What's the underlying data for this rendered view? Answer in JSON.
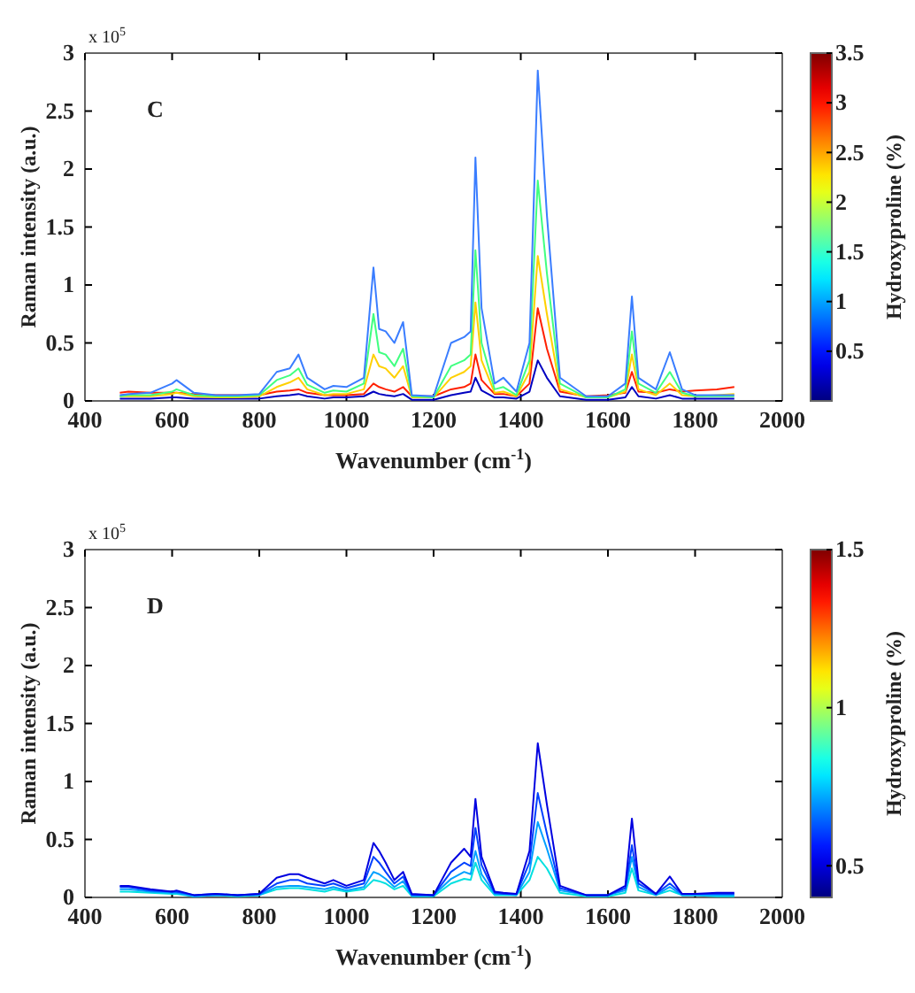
{
  "chart_data": [
    {
      "type": "line",
      "annotations": [
        "C",
        "x 10$^{5}$"
      ],
      "xlabel": "Wavenumber (cm$^{-1}$)",
      "ylabel": "Raman intensity (a.u.)",
      "clabel": "Hydroxyproline (%)",
      "clim": [
        0,
        3.5
      ],
      "cticks": [
        0.5,
        1,
        1.5,
        2,
        2.5,
        3,
        3.5
      ],
      "xlim": [
        400,
        2000
      ],
      "xticks": [
        400,
        600,
        800,
        1000,
        1200,
        1400,
        1600,
        1800,
        2000
      ],
      "ylim": [
        0,
        3
      ],
      "yticks": [
        0,
        0.5,
        1,
        1.5,
        2,
        2.5,
        3
      ],
      "x": [
        480,
        500,
        550,
        600,
        610,
        650,
        700,
        750,
        800,
        840,
        870,
        890,
        910,
        950,
        970,
        1000,
        1040,
        1062,
        1075,
        1090,
        1110,
        1130,
        1150,
        1200,
        1240,
        1270,
        1285,
        1296,
        1310,
        1340,
        1360,
        1390,
        1420,
        1439,
        1460,
        1490,
        1550,
        1600,
        1640,
        1655,
        1670,
        1710,
        1742,
        1770,
        1800,
        1850,
        1890
      ],
      "series": [
        {
          "color": "#0000c0",
          "values": [
            0.02,
            0.02,
            0.02,
            0.03,
            0.03,
            0.02,
            0.02,
            0.02,
            0.02,
            0.04,
            0.05,
            0.06,
            0.04,
            0.02,
            0.03,
            0.03,
            0.04,
            0.08,
            0.06,
            0.05,
            0.04,
            0.06,
            0.01,
            0.01,
            0.05,
            0.07,
            0.08,
            0.2,
            0.09,
            0.03,
            0.03,
            0.02,
            0.08,
            0.35,
            0.2,
            0.04,
            0.01,
            0.01,
            0.03,
            0.12,
            0.04,
            0.02,
            0.05,
            0.02,
            0.02,
            0.02,
            0.02
          ]
        },
        {
          "color": "#ff2000",
          "values": [
            0.07,
            0.08,
            0.07,
            0.07,
            0.07,
            0.06,
            0.05,
            0.05,
            0.05,
            0.08,
            0.09,
            0.1,
            0.07,
            0.05,
            0.05,
            0.05,
            0.06,
            0.15,
            0.12,
            0.1,
            0.08,
            0.12,
            0.04,
            0.04,
            0.1,
            0.12,
            0.15,
            0.4,
            0.18,
            0.06,
            0.06,
            0.04,
            0.15,
            0.8,
            0.45,
            0.08,
            0.04,
            0.05,
            0.07,
            0.25,
            0.08,
            0.07,
            0.1,
            0.08,
            0.09,
            0.1,
            0.12
          ]
        },
        {
          "color": "#ffd000",
          "values": [
            0.04,
            0.04,
            0.04,
            0.06,
            0.07,
            0.04,
            0.03,
            0.03,
            0.04,
            0.12,
            0.16,
            0.2,
            0.1,
            0.05,
            0.06,
            0.06,
            0.1,
            0.4,
            0.3,
            0.28,
            0.2,
            0.3,
            0.03,
            0.03,
            0.2,
            0.25,
            0.3,
            0.85,
            0.35,
            0.07,
            0.08,
            0.04,
            0.25,
            1.25,
            0.75,
            0.1,
            0.03,
            0.03,
            0.08,
            0.4,
            0.1,
            0.05,
            0.15,
            0.05,
            0.04,
            0.05,
            0.06
          ]
        },
        {
          "color": "#40ff80",
          "values": [
            0.04,
            0.05,
            0.05,
            0.08,
            0.1,
            0.05,
            0.04,
            0.04,
            0.05,
            0.18,
            0.22,
            0.28,
            0.14,
            0.07,
            0.09,
            0.08,
            0.15,
            0.75,
            0.42,
            0.4,
            0.3,
            0.45,
            0.04,
            0.03,
            0.3,
            0.35,
            0.4,
            1.3,
            0.5,
            0.1,
            0.12,
            0.05,
            0.35,
            1.9,
            1.1,
            0.15,
            0.03,
            0.03,
            0.1,
            0.6,
            0.15,
            0.07,
            0.25,
            0.07,
            0.04,
            0.04,
            0.04
          ]
        },
        {
          "color": "#3a7dff",
          "values": [
            0.05,
            0.06,
            0.07,
            0.15,
            0.18,
            0.07,
            0.05,
            0.05,
            0.06,
            0.25,
            0.28,
            0.4,
            0.2,
            0.1,
            0.13,
            0.12,
            0.2,
            1.15,
            0.62,
            0.6,
            0.5,
            0.68,
            0.05,
            0.04,
            0.5,
            0.55,
            0.6,
            2.1,
            0.8,
            0.15,
            0.2,
            0.08,
            0.5,
            2.85,
            1.6,
            0.2,
            0.04,
            0.04,
            0.15,
            0.9,
            0.2,
            0.1,
            0.42,
            0.1,
            0.05,
            0.05,
            0.05
          ]
        }
      ]
    },
    {
      "type": "line",
      "annotations": [
        "D",
        "x 10$^{5}$"
      ],
      "xlabel": "Wavenumber (cm$^{-1}$)",
      "ylabel": "Raman intensity (a.u.)",
      "clabel": "Hydroxyproline (%)",
      "clim": [
        0.4,
        1.5
      ],
      "cticks": [
        0.5,
        1,
        1.5
      ],
      "xlim": [
        400,
        2000
      ],
      "xticks": [
        400,
        600,
        800,
        1000,
        1200,
        1400,
        1600,
        1800,
        2000
      ],
      "ylim": [
        0,
        3
      ],
      "yticks": [
        0,
        0.5,
        1,
        1.5,
        2,
        2.5,
        3
      ],
      "x": [
        480,
        500,
        550,
        600,
        610,
        650,
        700,
        750,
        800,
        840,
        870,
        890,
        910,
        950,
        970,
        1000,
        1040,
        1062,
        1075,
        1090,
        1110,
        1130,
        1150,
        1200,
        1240,
        1270,
        1285,
        1296,
        1310,
        1340,
        1360,
        1390,
        1420,
        1439,
        1460,
        1490,
        1550,
        1600,
        1640,
        1655,
        1670,
        1710,
        1742,
        1770,
        1800,
        1850,
        1890
      ],
      "series": [
        {
          "color": "#00e0e0",
          "values": [
            0.05,
            0.05,
            0.04,
            0.03,
            0.03,
            0.01,
            0.02,
            0.01,
            0.02,
            0.07,
            0.08,
            0.08,
            0.07,
            0.05,
            0.07,
            0.05,
            0.07,
            0.15,
            0.14,
            0.12,
            0.07,
            0.1,
            0.01,
            0.01,
            0.12,
            0.16,
            0.15,
            0.3,
            0.15,
            0.02,
            0.02,
            0.02,
            0.15,
            0.35,
            0.25,
            0.04,
            0.01,
            0.01,
            0.04,
            0.25,
            0.06,
            0.02,
            0.06,
            0.02,
            0.02,
            0.01,
            0.01
          ]
        },
        {
          "color": "#00a0ff",
          "values": [
            0.07,
            0.07,
            0.05,
            0.04,
            0.04,
            0.01,
            0.02,
            0.02,
            0.02,
            0.09,
            0.1,
            0.1,
            0.09,
            0.07,
            0.09,
            0.06,
            0.09,
            0.22,
            0.2,
            0.16,
            0.09,
            0.14,
            0.02,
            0.02,
            0.16,
            0.22,
            0.2,
            0.4,
            0.2,
            0.03,
            0.03,
            0.02,
            0.22,
            0.65,
            0.42,
            0.06,
            0.02,
            0.02,
            0.06,
            0.35,
            0.09,
            0.02,
            0.09,
            0.02,
            0.02,
            0.02,
            0.02
          ]
        },
        {
          "color": "#0040ff",
          "values": [
            0.09,
            0.09,
            0.06,
            0.05,
            0.05,
            0.02,
            0.03,
            0.02,
            0.03,
            0.12,
            0.15,
            0.15,
            0.12,
            0.1,
            0.12,
            0.08,
            0.12,
            0.35,
            0.3,
            0.22,
            0.12,
            0.18,
            0.02,
            0.02,
            0.22,
            0.3,
            0.27,
            0.6,
            0.28,
            0.04,
            0.03,
            0.03,
            0.3,
            0.9,
            0.55,
            0.08,
            0.02,
            0.02,
            0.08,
            0.45,
            0.12,
            0.03,
            0.12,
            0.03,
            0.03,
            0.03,
            0.03
          ]
        },
        {
          "color": "#0000e0",
          "values": [
            0.1,
            0.1,
            0.07,
            0.05,
            0.06,
            0.02,
            0.03,
            0.02,
            0.03,
            0.17,
            0.2,
            0.2,
            0.17,
            0.12,
            0.15,
            0.1,
            0.15,
            0.47,
            0.4,
            0.3,
            0.15,
            0.22,
            0.03,
            0.02,
            0.3,
            0.42,
            0.35,
            0.85,
            0.35,
            0.05,
            0.04,
            0.03,
            0.4,
            1.33,
            0.8,
            0.1,
            0.02,
            0.02,
            0.1,
            0.68,
            0.15,
            0.03,
            0.18,
            0.03,
            0.03,
            0.04,
            0.04
          ]
        }
      ]
    }
  ]
}
